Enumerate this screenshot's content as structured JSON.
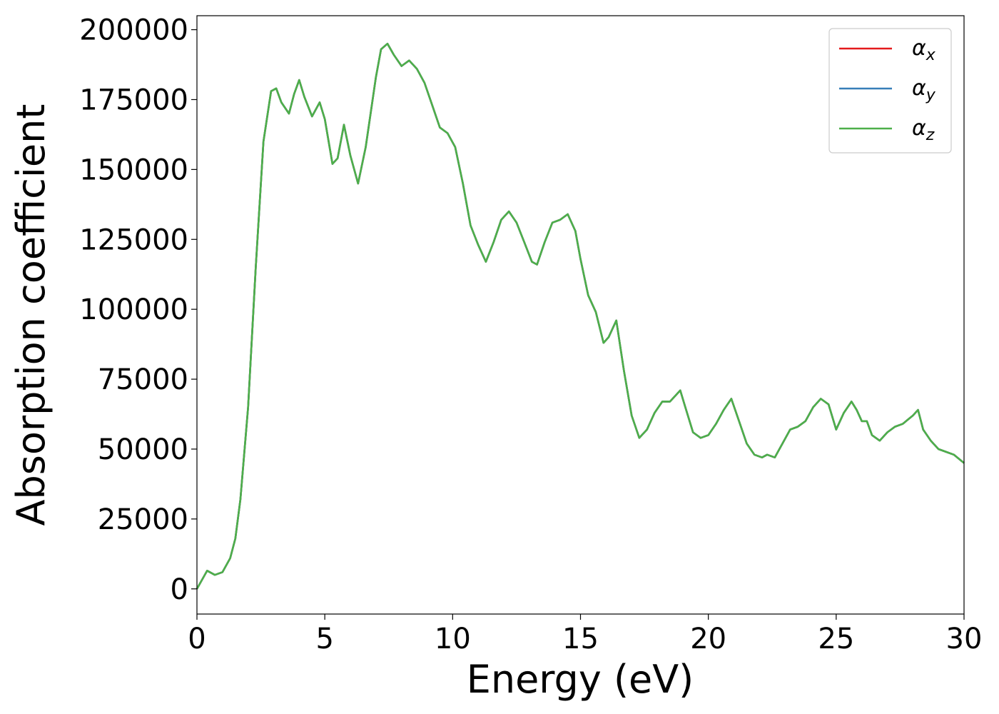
{
  "chart_data": {
    "type": "line",
    "title": "",
    "xlabel": "Energy (eV)",
    "ylabel": "Absorption coefficient",
    "xlim": [
      0,
      30
    ],
    "ylim": [
      -9000,
      205000
    ],
    "xticks": [
      0,
      5,
      10,
      15,
      20,
      25,
      30
    ],
    "yticks": [
      0,
      25000,
      50000,
      75000,
      100000,
      125000,
      150000,
      175000,
      200000
    ],
    "grid": false,
    "legend_position": "top-right",
    "x": [
      0,
      0.4,
      0.7,
      1.0,
      1.3,
      1.5,
      1.7,
      2.0,
      2.3,
      2.6,
      2.9,
      3.1,
      3.3,
      3.6,
      3.8,
      4.0,
      4.2,
      4.5,
      4.8,
      5.0,
      5.3,
      5.5,
      5.75,
      6.0,
      6.3,
      6.6,
      7.0,
      7.2,
      7.45,
      7.7,
      8.0,
      8.3,
      8.6,
      8.9,
      9.2,
      9.5,
      9.8,
      10.1,
      10.4,
      10.7,
      11.0,
      11.3,
      11.6,
      11.9,
      12.2,
      12.5,
      12.8,
      13.1,
      13.3,
      13.6,
      13.9,
      14.2,
      14.5,
      14.8,
      15.0,
      15.3,
      15.6,
      15.9,
      16.1,
      16.4,
      16.7,
      17.0,
      17.3,
      17.6,
      17.9,
      18.2,
      18.5,
      18.7,
      18.9,
      19.1,
      19.4,
      19.7,
      20.0,
      20.3,
      20.6,
      20.9,
      21.2,
      21.5,
      21.8,
      22.1,
      22.3,
      22.6,
      22.9,
      23.2,
      23.5,
      23.8,
      24.1,
      24.4,
      24.7,
      25.0,
      25.3,
      25.6,
      25.8,
      26.0,
      26.2,
      26.4,
      26.7,
      27.0,
      27.3,
      27.6,
      28.0,
      28.2,
      28.4,
      28.7,
      29.0,
      29.3,
      29.6,
      30.0
    ],
    "series": [
      {
        "name": "αx",
        "color": "#e41a1c",
        "values": [
          0,
          6500,
          5000,
          6000,
          11000,
          18000,
          32000,
          65000,
          115000,
          160000,
          178000,
          179000,
          174000,
          170000,
          177000,
          182000,
          176000,
          169000,
          174000,
          168000,
          152000,
          154000,
          166000,
          155000,
          145000,
          158000,
          183000,
          193000,
          195000,
          191000,
          187000,
          189000,
          186000,
          181000,
          173000,
          165000,
          163000,
          158000,
          145000,
          130000,
          123000,
          117000,
          124000,
          132000,
          135000,
          131000,
          124000,
          117000,
          116000,
          124000,
          131000,
          132000,
          134000,
          128000,
          118000,
          105000,
          99000,
          88000,
          90000,
          96000,
          78000,
          62000,
          54000,
          57000,
          63000,
          67000,
          67000,
          69000,
          71000,
          65000,
          56000,
          54000,
          55000,
          59000,
          64000,
          68000,
          60000,
          52000,
          48000,
          47000,
          48000,
          47000,
          52000,
          57000,
          58000,
          60000,
          65000,
          68000,
          66000,
          57000,
          63000,
          67000,
          64000,
          60000,
          60000,
          55000,
          53000,
          56000,
          58000,
          59000,
          62000,
          64000,
          57000,
          53000,
          50000,
          49000,
          48000,
          45000
        ]
      },
      {
        "name": "αy",
        "color": "#377eb8",
        "values": [
          0,
          6500,
          5000,
          6000,
          11000,
          18000,
          32000,
          65000,
          115000,
          160000,
          178000,
          179000,
          174000,
          170000,
          177000,
          182000,
          176000,
          169000,
          174000,
          168000,
          152000,
          154000,
          166000,
          155000,
          145000,
          158000,
          183000,
          193000,
          195000,
          191000,
          187000,
          189000,
          186000,
          181000,
          173000,
          165000,
          163000,
          158000,
          145000,
          130000,
          123000,
          117000,
          124000,
          132000,
          135000,
          131000,
          124000,
          117000,
          116000,
          124000,
          131000,
          132000,
          134000,
          128000,
          118000,
          105000,
          99000,
          88000,
          90000,
          96000,
          78000,
          62000,
          54000,
          57000,
          63000,
          67000,
          67000,
          69000,
          71000,
          65000,
          56000,
          54000,
          55000,
          59000,
          64000,
          68000,
          60000,
          52000,
          48000,
          47000,
          48000,
          47000,
          52000,
          57000,
          58000,
          60000,
          65000,
          68000,
          66000,
          57000,
          63000,
          67000,
          64000,
          60000,
          60000,
          55000,
          53000,
          56000,
          58000,
          59000,
          62000,
          64000,
          57000,
          53000,
          50000,
          49000,
          48000,
          45000
        ]
      },
      {
        "name": "αz",
        "color": "#4daf4a",
        "values": [
          0,
          6500,
          5000,
          6000,
          11000,
          18000,
          32000,
          65000,
          115000,
          160000,
          178000,
          179000,
          174000,
          170000,
          177000,
          182000,
          176000,
          169000,
          174000,
          168000,
          152000,
          154000,
          166000,
          155000,
          145000,
          158000,
          183000,
          193000,
          195000,
          191000,
          187000,
          189000,
          186000,
          181000,
          173000,
          165000,
          163000,
          158000,
          145000,
          130000,
          123000,
          117000,
          124000,
          132000,
          135000,
          131000,
          124000,
          117000,
          116000,
          124000,
          131000,
          132000,
          134000,
          128000,
          118000,
          105000,
          99000,
          88000,
          90000,
          96000,
          78000,
          62000,
          54000,
          57000,
          63000,
          67000,
          67000,
          69000,
          71000,
          65000,
          56000,
          54000,
          55000,
          59000,
          64000,
          68000,
          60000,
          52000,
          48000,
          47000,
          48000,
          47000,
          52000,
          57000,
          58000,
          60000,
          65000,
          68000,
          66000,
          57000,
          63000,
          67000,
          64000,
          60000,
          60000,
          55000,
          53000,
          56000,
          58000,
          59000,
          62000,
          64000,
          57000,
          53000,
          50000,
          49000,
          48000,
          45000
        ]
      }
    ],
    "legend": [
      {
        "symbol": "α",
        "subscript": "x",
        "color": "#e41a1c"
      },
      {
        "symbol": "α",
        "subscript": "y",
        "color": "#377eb8"
      },
      {
        "symbol": "α",
        "subscript": "z",
        "color": "#4daf4a"
      }
    ]
  }
}
